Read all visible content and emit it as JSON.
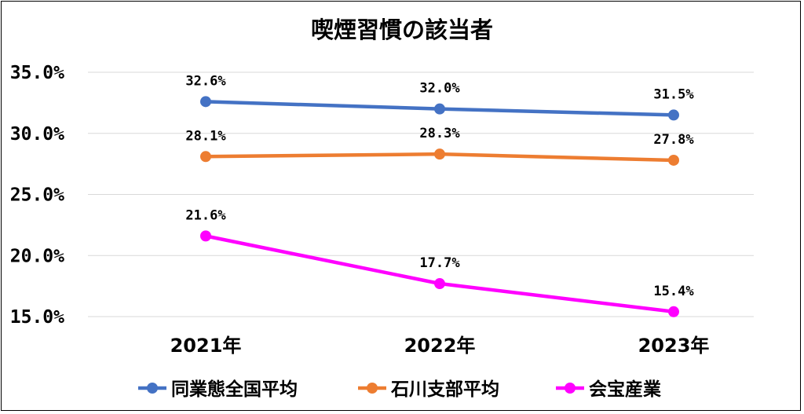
{
  "chart_data": {
    "type": "line",
    "title": "喫煙習慣の該当者",
    "categories": [
      "2021年",
      "2022年",
      "2023年"
    ],
    "ylim": [
      15.0,
      35.0
    ],
    "yticks": [
      "35.0%",
      "30.0%",
      "25.0%",
      "20.0%",
      "15.0%"
    ],
    "grid": true,
    "legend_position": "bottom",
    "series": [
      {
        "name": "同業態全国平均",
        "color": "#4472c4",
        "values": [
          32.6,
          32.0,
          31.5
        ],
        "labels": [
          "32.6%",
          "32.0%",
          "31.5%"
        ]
      },
      {
        "name": "石川支部平均",
        "color": "#ed7d31",
        "values": [
          28.1,
          28.3,
          27.8
        ],
        "labels": [
          "28.1%",
          "28.3%",
          "27.8%"
        ]
      },
      {
        "name": "会宝産業",
        "color": "#ff00ff",
        "values": [
          21.6,
          17.7,
          15.4
        ],
        "labels": [
          "21.6%",
          "17.7%",
          "15.4%"
        ]
      }
    ]
  }
}
